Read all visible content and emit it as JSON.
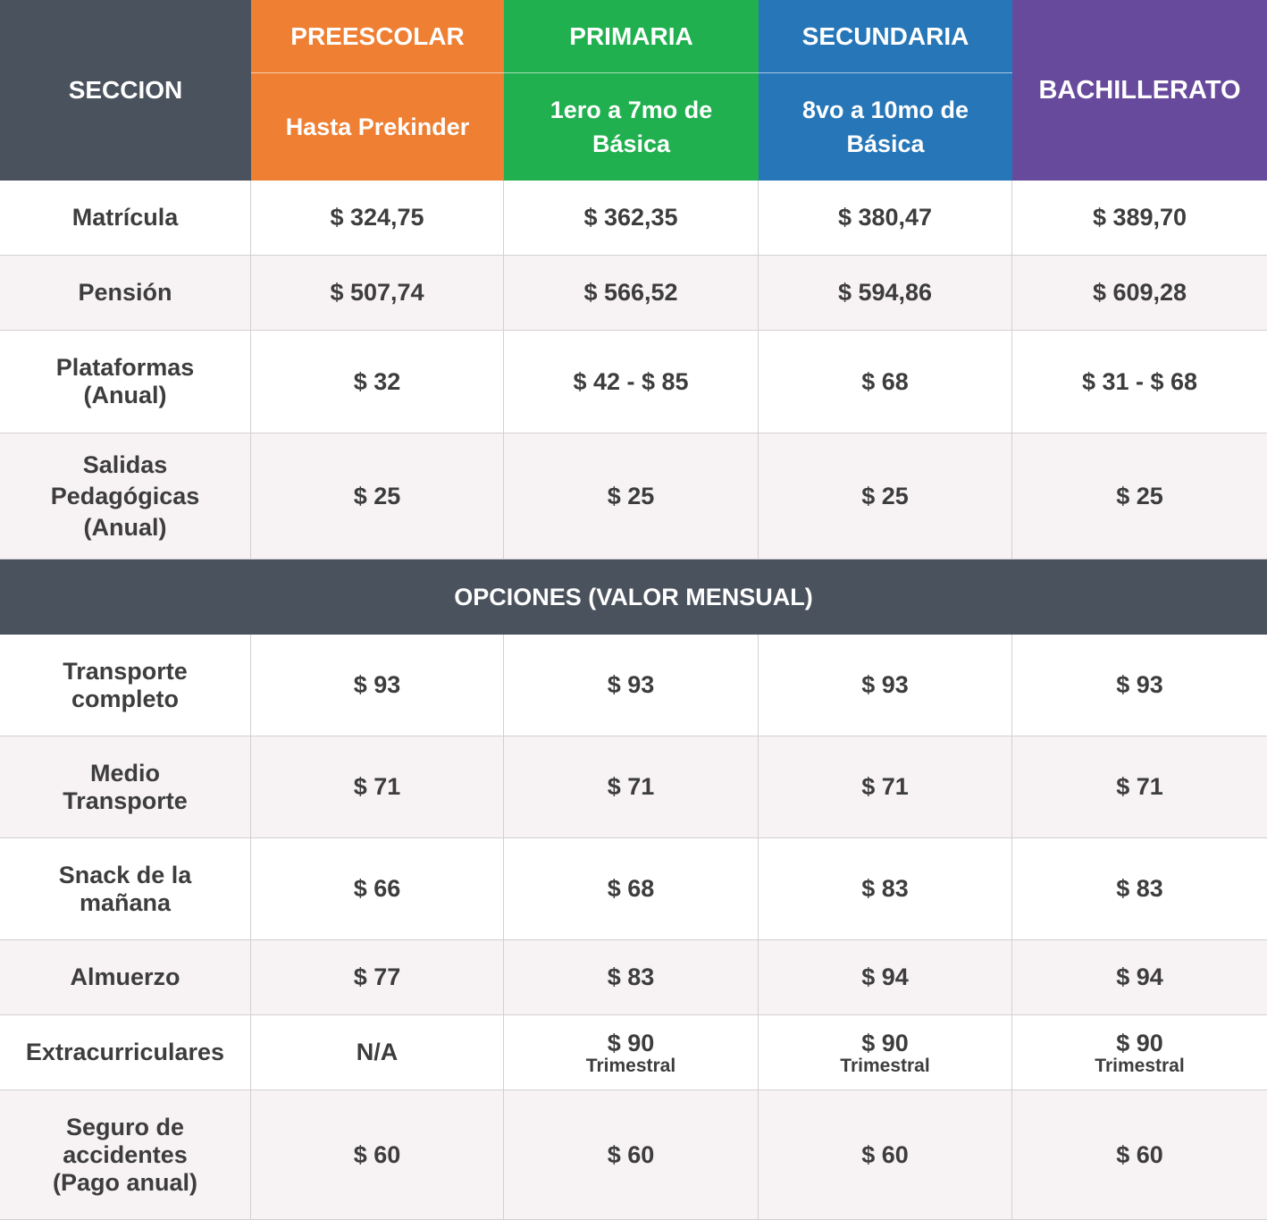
{
  "colors": {
    "dark": "#4a525d",
    "preescolar": "#ee7f33",
    "primaria": "#21b04f",
    "secundaria": "#2676b8",
    "bachillerato": "#674a9c",
    "stripe": "#f7f2f4"
  },
  "header": {
    "seccion": "SECCION",
    "columns": [
      {
        "title": "PREESCOLAR",
        "subtitle": "Hasta Prekinder"
      },
      {
        "title": "PRIMARIA",
        "subtitle_line1": "1ero a 7mo de",
        "subtitle_line2": "Básica"
      },
      {
        "title": "SECUNDARIA",
        "subtitle_line1": "8vo a 10mo de",
        "subtitle_line2": "Básica"
      },
      {
        "title": "BACHILLERATO"
      }
    ]
  },
  "fees": [
    {
      "label": [
        "Matrícula"
      ],
      "values": [
        "$ 324,75",
        "$ 362,35",
        "$ 380,47",
        "$ 389,70"
      ]
    },
    {
      "label": [
        "Pensión"
      ],
      "values": [
        "$ 507,74",
        "$ 566,52",
        "$ 594,86",
        "$ 609,28"
      ]
    },
    {
      "label": [
        "Plataformas",
        "(Anual)"
      ],
      "values": [
        "$ 32",
        "$ 42 - $ 85",
        "$ 68",
        "$ 31 - $ 68"
      ]
    },
    {
      "label": [
        "Salidas",
        "Pedagógicas",
        "(Anual)"
      ],
      "values": [
        "$ 25",
        "$ 25",
        "$ 25",
        "$ 25"
      ]
    }
  ],
  "options_title": "OPCIONES (VALOR MENSUAL)",
  "options": [
    {
      "label": [
        "Transporte",
        "completo"
      ],
      "values": [
        "$ 93",
        "$ 93",
        "$ 93",
        "$ 93"
      ]
    },
    {
      "label": [
        "Medio",
        "Transporte"
      ],
      "values": [
        "$ 71",
        "$ 71",
        "$ 71",
        "$ 71"
      ]
    },
    {
      "label": [
        "Snack de la",
        "mañana"
      ],
      "values": [
        "$ 66",
        "$ 68",
        "$ 83",
        "$ 83"
      ]
    },
    {
      "label": [
        "Almuerzo"
      ],
      "values": [
        "$ 77",
        "$ 83",
        "$ 94",
        "$ 94"
      ]
    },
    {
      "label": [
        "Extracurriculares"
      ],
      "values": [
        "N/A",
        "$ 90",
        "$ 90",
        "$ 90"
      ],
      "notes": [
        "",
        "Trimestral",
        "Trimestral",
        "Trimestral"
      ]
    },
    {
      "label": [
        "Seguro de",
        "accidentes",
        "(Pago anual)"
      ],
      "values": [
        "$ 60",
        "$ 60",
        "$ 60",
        "$ 60"
      ]
    }
  ]
}
